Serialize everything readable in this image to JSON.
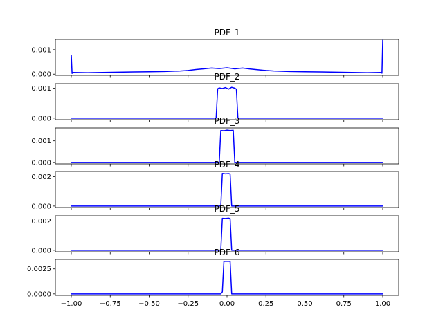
{
  "chart_data": {
    "type": "line",
    "shared_x": true,
    "xlim": [
      -1.0,
      1.0
    ],
    "x_ticks": [
      -1.0,
      -0.75,
      -0.5,
      -0.25,
      0.0,
      0.25,
      0.5,
      0.75,
      1.0
    ],
    "x_tick_labels": [
      "−1.00",
      "−0.75",
      "−0.50",
      "−0.25",
      "0.00",
      "0.25",
      "0.50",
      "0.75",
      "1.00"
    ],
    "line_color": "#0000ff",
    "grid": false,
    "panels": [
      {
        "title": "PDF_1",
        "ylim": [
          -5e-05,
          0.00142
        ],
        "y_ticks": [
          0.0,
          0.001
        ],
        "y_tick_labels": [
          "0.000",
          "0.001"
        ],
        "series": [
          {
            "x": [
              -1.0,
              -0.995,
              -0.99,
              -0.9,
              -0.8,
              -0.7,
              -0.6,
              -0.5,
              -0.4,
              -0.3,
              -0.25,
              -0.2,
              -0.15,
              -0.1,
              -0.05,
              0.0,
              0.05,
              0.1,
              0.15,
              0.2,
              0.25,
              0.3,
              0.4,
              0.5,
              0.6,
              0.7,
              0.8,
              0.9,
              0.99,
              0.995,
              1.0
            ],
            "y": [
              0.00078,
              3e-05,
              7e-05,
              6e-05,
              7e-05,
              8e-05,
              9e-05,
              0.0001,
              0.00011,
              0.00013,
              0.00015,
              0.00019,
              0.00022,
              0.00025,
              0.00023,
              0.00026,
              0.00022,
              0.00025,
              0.00021,
              0.00018,
              0.00015,
              0.00013,
              0.00011,
              0.0001,
              9e-05,
              8e-05,
              7e-05,
              6e-05,
              7e-05,
              4e-05,
              0.0014
            ]
          }
        ]
      },
      {
        "title": "PDF_2",
        "ylim": [
          -5e-05,
          0.00115
        ],
        "y_ticks": [
          0.0,
          0.001
        ],
        "y_tick_labels": [
          "0.000",
          "0.001"
        ],
        "series": [
          {
            "x": [
              -1.0,
              -0.5,
              -0.07,
              -0.06,
              -0.05,
              -0.03,
              -0.01,
              0.01,
              0.03,
              0.05,
              0.06,
              0.07,
              0.5,
              1.0
            ],
            "y": [
              0.0,
              0.0,
              0.0,
              0.00098,
              0.00101,
              0.00099,
              0.00102,
              0.00097,
              0.00103,
              0.001,
              0.00097,
              0.0,
              0.0,
              0.0
            ]
          }
        ]
      },
      {
        "title": "PDF_3",
        "ylim": [
          -7e-05,
          0.0016
        ],
        "y_ticks": [
          0.0,
          0.001
        ],
        "y_tick_labels": [
          "0.000",
          "0.001"
        ],
        "series": [
          {
            "x": [
              -1.0,
              -0.5,
              -0.05,
              -0.04,
              -0.02,
              0.0,
              0.02,
              0.04,
              0.05,
              0.5,
              1.0
            ],
            "y": [
              0.0,
              0.0,
              0.0,
              0.00148,
              0.00147,
              0.0015,
              0.00148,
              0.00149,
              0.0,
              0.0,
              0.0
            ]
          }
        ]
      },
      {
        "title": "PDF_4",
        "ylim": [
          -0.0001,
          0.00235
        ],
        "y_ticks": [
          0.0,
          0.002
        ],
        "y_tick_labels": [
          "0.000",
          "0.002"
        ],
        "series": [
          {
            "x": [
              -1.0,
              -0.5,
              -0.04,
              -0.03,
              -0.01,
              0.01,
              0.02,
              0.03,
              0.5,
              1.0
            ],
            "y": [
              0.0,
              0.0,
              0.0,
              0.00222,
              0.00219,
              0.00221,
              0.00218,
              0.0,
              0.0,
              0.0
            ]
          }
        ]
      },
      {
        "title": "PDF_5",
        "ylim": [
          -0.0001,
          0.00235
        ],
        "y_ticks": [
          0.0,
          0.002
        ],
        "y_tick_labels": [
          "0.000",
          "0.002"
        ],
        "series": [
          {
            "x": [
              -1.0,
              -0.5,
              -0.04,
              -0.03,
              -0.01,
              0.01,
              0.02,
              0.03,
              0.5,
              1.0
            ],
            "y": [
              0.0,
              0.0,
              0.0,
              0.00218,
              0.00217,
              0.00219,
              0.00216,
              0.0,
              0.0,
              0.0
            ]
          }
        ]
      },
      {
        "title": "PDF_6",
        "ylim": [
          -0.00015,
          0.00345
        ],
        "y_ticks": [
          0.0,
          0.0025
        ],
        "y_tick_labels": [
          "0.0000",
          "0.0025"
        ],
        "series": [
          {
            "x": [
              -1.0,
              -0.5,
              -0.04,
              -0.03,
              -0.02,
              0.0,
              0.02,
              0.03,
              0.5,
              1.0
            ],
            "y": [
              0.0,
              0.0,
              0.0,
              0.0002,
              0.00325,
              0.00325,
              0.00325,
              0.0,
              0.0,
              0.0
            ]
          }
        ]
      }
    ]
  }
}
